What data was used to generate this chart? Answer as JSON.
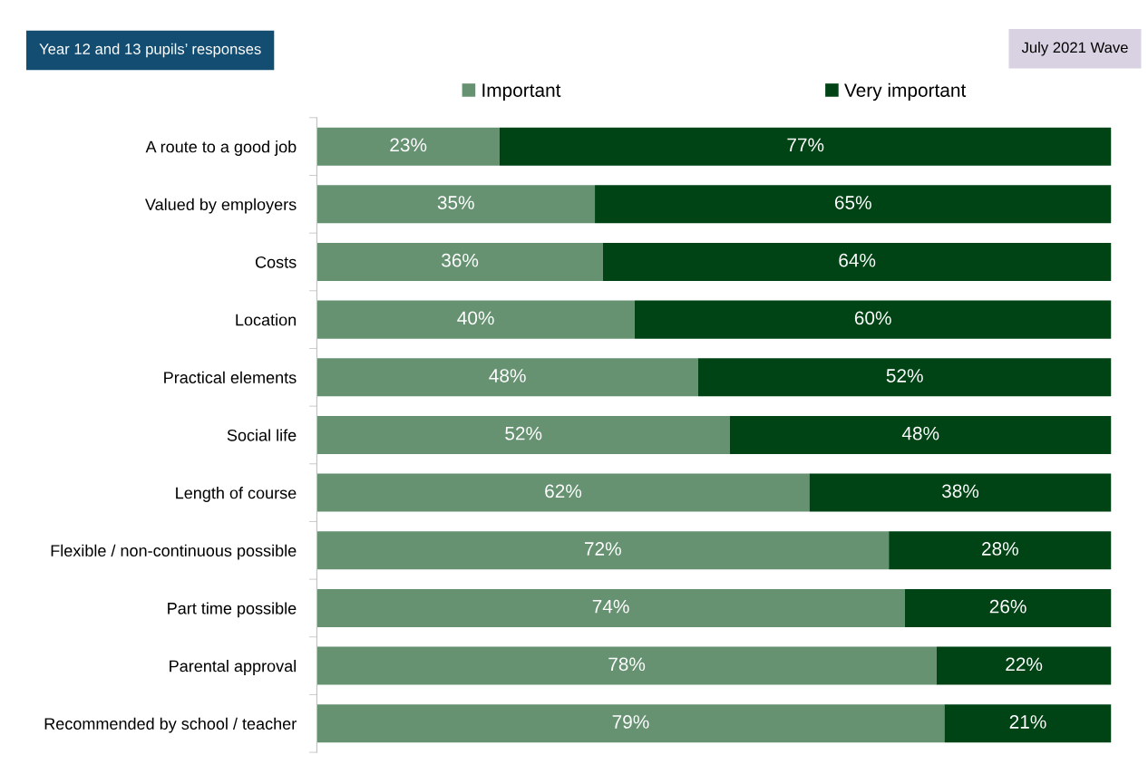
{
  "chart_data": {
    "type": "bar",
    "orientation": "horizontal",
    "stacked": true,
    "legend": "top",
    "grid": false,
    "categories": [
      "A route to a good job",
      "Valued by employers",
      "Costs",
      "Location",
      "Practical elements",
      "Social life",
      "Length of course",
      "Flexible / non-continuous possible",
      "Part time possible",
      "Parental approval",
      "Recommended by school / teacher"
    ],
    "series": [
      {
        "name": "Important",
        "color": "#669272",
        "values": [
          23,
          35,
          36,
          40,
          48,
          52,
          62,
          72,
          74,
          78,
          79
        ],
        "value_labels": [
          "23%",
          "35%",
          "36%",
          "40%",
          "48%",
          "52%",
          "62%",
          "72%",
          "74%",
          "78%",
          "79%"
        ]
      },
      {
        "name": "Very important",
        "color": "#004415",
        "values": [
          77,
          65,
          64,
          60,
          52,
          48,
          38,
          28,
          26,
          22,
          21
        ],
        "value_labels": [
          "77%",
          "65%",
          "64%",
          "60%",
          "52%",
          "48%",
          "38%",
          "28%",
          "26%",
          "22%",
          "21%"
        ]
      }
    ],
    "annotations": [
      "Year 12 and 13 pupils’ responses",
      "July 2021 Wave"
    ]
  }
}
